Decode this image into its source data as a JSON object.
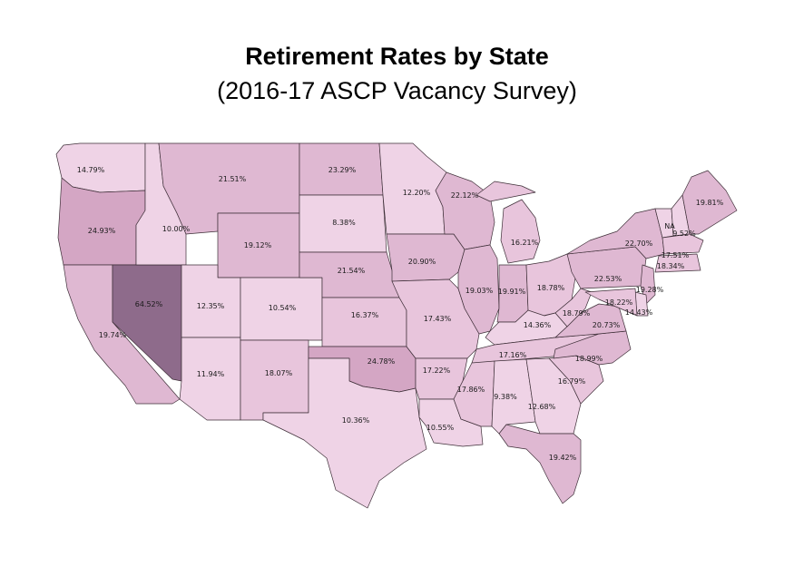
{
  "title": "Retirement Rates by State",
  "subtitle": "(2016-17 ASCP Vacancy Survey)",
  "colors": {
    "level1": "#efd3e6",
    "level2": "#e8c5dc",
    "level3": "#dfb8d2",
    "level4": "#d4a6c4",
    "level5": "#8e6b8b",
    "border": "#3e2f38"
  },
  "states": [
    {
      "name": "Washington",
      "value": "14.79%",
      "level": 1
    },
    {
      "name": "Oregon",
      "value": "24.93%",
      "level": 4
    },
    {
      "name": "California",
      "value": "19.74%",
      "level": 3
    },
    {
      "name": "Nevada",
      "value": "64.52%",
      "level": 5
    },
    {
      "name": "Idaho",
      "value": "10.00%",
      "level": 1
    },
    {
      "name": "Montana",
      "value": "21.51%",
      "level": 3
    },
    {
      "name": "Wyoming",
      "value": "19.12%",
      "level": 3
    },
    {
      "name": "Utah",
      "value": "12.35%",
      "level": 1
    },
    {
      "name": "Arizona",
      "value": "11.94%",
      "level": 1
    },
    {
      "name": "Colorado",
      "value": "10.54%",
      "level": 1
    },
    {
      "name": "New Mexico",
      "value": "18.07%",
      "level": 2
    },
    {
      "name": "North Dakota",
      "value": "23.29%",
      "level": 3
    },
    {
      "name": "South Dakota",
      "value": "8.38%",
      "level": 1
    },
    {
      "name": "Nebraska",
      "value": "21.54%",
      "level": 3
    },
    {
      "name": "Kansas",
      "value": "16.37%",
      "level": 2
    },
    {
      "name": "Oklahoma",
      "value": "24.78%",
      "level": 4
    },
    {
      "name": "Texas",
      "value": "10.36%",
      "level": 1
    },
    {
      "name": "Minnesota",
      "value": "12.20%",
      "level": 1
    },
    {
      "name": "Iowa",
      "value": "20.90%",
      "level": 3
    },
    {
      "name": "Missouri",
      "value": "17.43%",
      "level": 2
    },
    {
      "name": "Arkansas",
      "value": "17.22%",
      "level": 2
    },
    {
      "name": "Louisiana",
      "value": "10.55%",
      "level": 1
    },
    {
      "name": "Wisconsin",
      "value": "22.12%",
      "level": 3
    },
    {
      "name": "Illinois",
      "value": "19.03%",
      "level": 3
    },
    {
      "name": "Michigan",
      "value": "16.21%",
      "level": 2
    },
    {
      "name": "Indiana",
      "value": "19.91%",
      "level": 3
    },
    {
      "name": "Ohio",
      "value": "18.78%",
      "level": 2
    },
    {
      "name": "Kentucky",
      "value": "14.36%",
      "level": 1
    },
    {
      "name": "Tennessee",
      "value": "17.16%",
      "level": 2
    },
    {
      "name": "Mississippi",
      "value": "17.86%",
      "level": 2
    },
    {
      "name": "Alabama",
      "value": "9.38%",
      "level": 1
    },
    {
      "name": "Georgia",
      "value": "12.68%",
      "level": 1
    },
    {
      "name": "Florida",
      "value": "19.42%",
      "level": 3
    },
    {
      "name": "South Carolina",
      "value": "16.79%",
      "level": 2
    },
    {
      "name": "North Carolina",
      "value": "18.99%",
      "level": 3
    },
    {
      "name": "Virginia",
      "value": "20.73%",
      "level": 3
    },
    {
      "name": "West Virginia",
      "value": "18.79%",
      "level": 2
    },
    {
      "name": "Pennsylvania",
      "value": "22.53%",
      "level": 3
    },
    {
      "name": "New York",
      "value": "22.70%",
      "level": 3
    },
    {
      "name": "Vermont",
      "value": "NA",
      "level": 1
    },
    {
      "name": "New Hampshire",
      "value": "9.52%",
      "level": 1
    },
    {
      "name": "Maine",
      "value": "19.81%",
      "level": 3
    },
    {
      "name": "Massachusetts",
      "value": "17.51%",
      "level": 2
    },
    {
      "name": "Connecticut",
      "value": "18.34%",
      "level": 2
    },
    {
      "name": "New Jersey",
      "value": "19.28%",
      "level": 3
    },
    {
      "name": "Delaware",
      "value": "14.43%",
      "level": 1
    },
    {
      "name": "Maryland",
      "value": "18.22%",
      "level": 2
    }
  ]
}
